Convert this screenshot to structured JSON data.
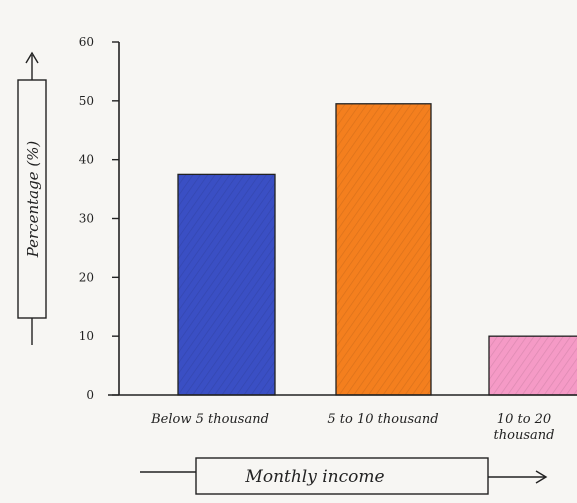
{
  "chart_data": {
    "type": "bar",
    "categories": [
      "Below 5 thousand",
      "5 to 10 thousand",
      "10 to 20 thousand"
    ],
    "category_lines": [
      [
        "Below 5 thousand"
      ],
      [
        "5 to 10 thousand"
      ],
      [
        "10 to 20",
        "thousand"
      ]
    ],
    "values": [
      37.5,
      49.5,
      10
    ],
    "colors": [
      "#3a4fc4",
      "#f47f1e",
      "#f59ac6"
    ],
    "xlabel": "Monthly income",
    "ylabel": "Percentage (%)",
    "ylim": [
      0,
      60
    ],
    "yticks": [
      0,
      10,
      20,
      30,
      40,
      50,
      60
    ],
    "grid": false
  }
}
